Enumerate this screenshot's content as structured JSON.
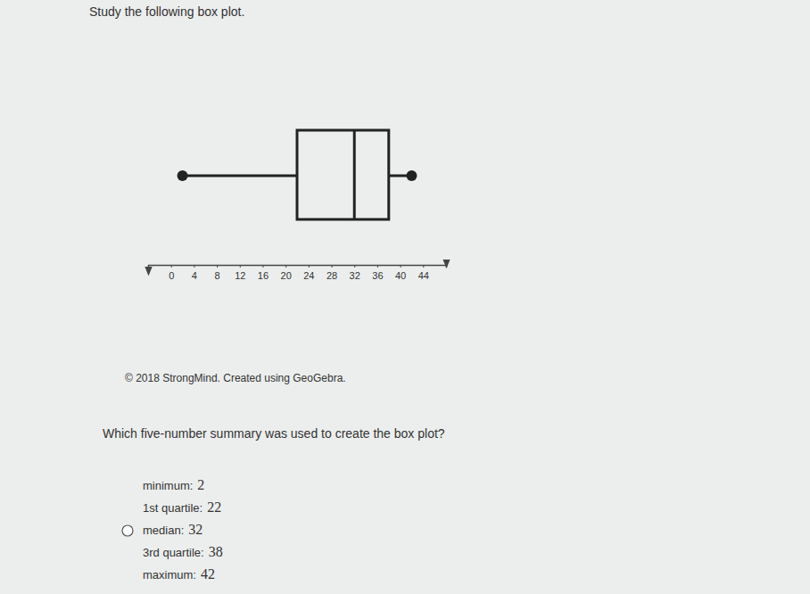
{
  "chart_data": {
    "type": "box",
    "min": 2,
    "q1": 22,
    "median": 32,
    "q3": 38,
    "max": 42,
    "xlim": [
      -4,
      48
    ],
    "xticks": [
      0,
      4,
      8,
      12,
      16,
      20,
      24,
      28,
      32,
      36,
      40,
      44
    ]
  },
  "page": {
    "instruction": "Study the following box plot.",
    "credit": "© 2018 StrongMind. Created using GeoGebra.",
    "question": "Which five-number summary was used to create the box plot?",
    "options": [
      [
        {
          "label": "minimum:",
          "value": 2
        },
        {
          "label": "1st quartile:",
          "value": 22
        },
        {
          "label": "median:",
          "value": 32
        },
        {
          "label": "3rd quartile:",
          "value": 38
        },
        {
          "label": "maximum:",
          "value": 42
        }
      ]
    ]
  }
}
